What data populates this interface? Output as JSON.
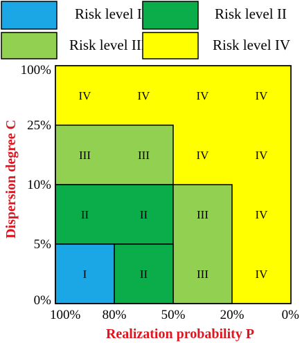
{
  "chart_data": {
    "type": "heatmap",
    "title": "",
    "xlabel": "Realization probability P",
    "ylabel": "Dispersion degree C",
    "x_ticks": [
      "100%",
      "80%",
      "50%",
      "20%",
      "0%"
    ],
    "y_ticks": [
      "0%",
      "5%",
      "10%",
      "25%",
      "100%"
    ],
    "levels": [
      {
        "key": "I",
        "name": "Risk level I",
        "color": "#1ba6e6"
      },
      {
        "key": "II",
        "name": "Risk level II",
        "color": "#0aad4a"
      },
      {
        "key": "III",
        "name": "Risk level III",
        "color": "#91d050"
      },
      {
        "key": "IV",
        "name": "Risk level IV",
        "color": "#ffff00"
      }
    ],
    "grid": [
      [
        "IV",
        "IV",
        "IV",
        "IV"
      ],
      [
        "III",
        "III",
        "IV",
        "IV"
      ],
      [
        "II",
        "II",
        "III",
        "IV"
      ],
      [
        "I",
        "II",
        "III",
        "IV"
      ]
    ],
    "regions": [
      {
        "level": "III",
        "x": [
          0,
          2
        ],
        "y": [
          2,
          3
        ]
      },
      {
        "level": "II",
        "x": [
          0,
          2
        ],
        "y": [
          1,
          2
        ]
      },
      {
        "level": "III",
        "x": [
          2,
          3
        ],
        "y": [
          0,
          2
        ]
      },
      {
        "level": "II",
        "x": [
          1,
          2
        ],
        "y": [
          0,
          1
        ]
      },
      {
        "level": "I",
        "x": [
          0,
          1
        ],
        "y": [
          0,
          1
        ]
      }
    ],
    "legend_position": "top",
    "axis_title_color": "#e0141e",
    "border_color": "#000000"
  }
}
